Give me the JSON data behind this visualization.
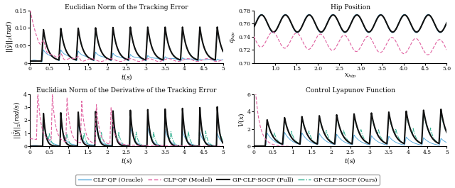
{
  "title_tl": "Euclidian Norm of the Tracking Error",
  "title_tr": "Hip Position",
  "title_bl": "Euclidian Norm of the Derivative of the Tracking Error",
  "title_br": "Control Lyapunov Function",
  "ylabel_tl": "$||\\tilde{y}||_2(rad)$",
  "ylabel_tr": "$q_{hip}$",
  "ylabel_bl": "$||\\dot{\\tilde{y}}||_2(rad/s)$",
  "ylabel_br": "$V(x)$",
  "xlabel_tl": "$t(s)$",
  "xlabel_tr": "$x_{hip}$",
  "xlabel_bl": "$t(s)$",
  "xlabel_br": "$t(s)$",
  "xlim_tl": [
    0,
    5
  ],
  "xlim_tr": [
    0.5,
    5
  ],
  "xlim_bl": [
    0,
    5
  ],
  "xlim_br": [
    0,
    5
  ],
  "ylim_tl": [
    0,
    0.15
  ],
  "ylim_tr": [
    0.7,
    0.78
  ],
  "ylim_bl": [
    0,
    4
  ],
  "ylim_br": [
    0,
    6
  ],
  "yticks_tl": [
    0,
    0.05,
    0.1,
    0.15
  ],
  "yticks_tr": [
    0.7,
    0.72,
    0.74,
    0.76,
    0.78
  ],
  "yticks_bl": [
    0,
    1,
    2,
    3,
    4
  ],
  "yticks_br": [
    0,
    2,
    4,
    6
  ],
  "xticks_common": [
    0,
    0.5,
    1,
    1.5,
    2,
    2.5,
    3,
    3.5,
    4,
    4.5,
    5
  ],
  "xticks_tr": [
    1,
    1.5,
    2,
    2.5,
    3,
    3.5,
    4,
    4.5,
    5
  ],
  "colors": {
    "oracle": "#5aabdc",
    "model": "#e060a0",
    "full": "#111111",
    "ours": "#30b090"
  },
  "legend_labels": [
    "CLF-QP (Oracle)",
    "CLF-QP (Model)",
    "GP-CLF-SOCP (Full)",
    "GP-CLF-SOCP (Ours)"
  ],
  "font_size": 6.5,
  "title_font_size": 6.5,
  "tick_font_size": 5.5,
  "lw_oracle": 0.7,
  "lw_model": 0.8,
  "lw_full": 1.5,
  "lw_ours": 0.7,
  "step_period": 0.45,
  "step_start": 0.35,
  "n_steps": 10
}
